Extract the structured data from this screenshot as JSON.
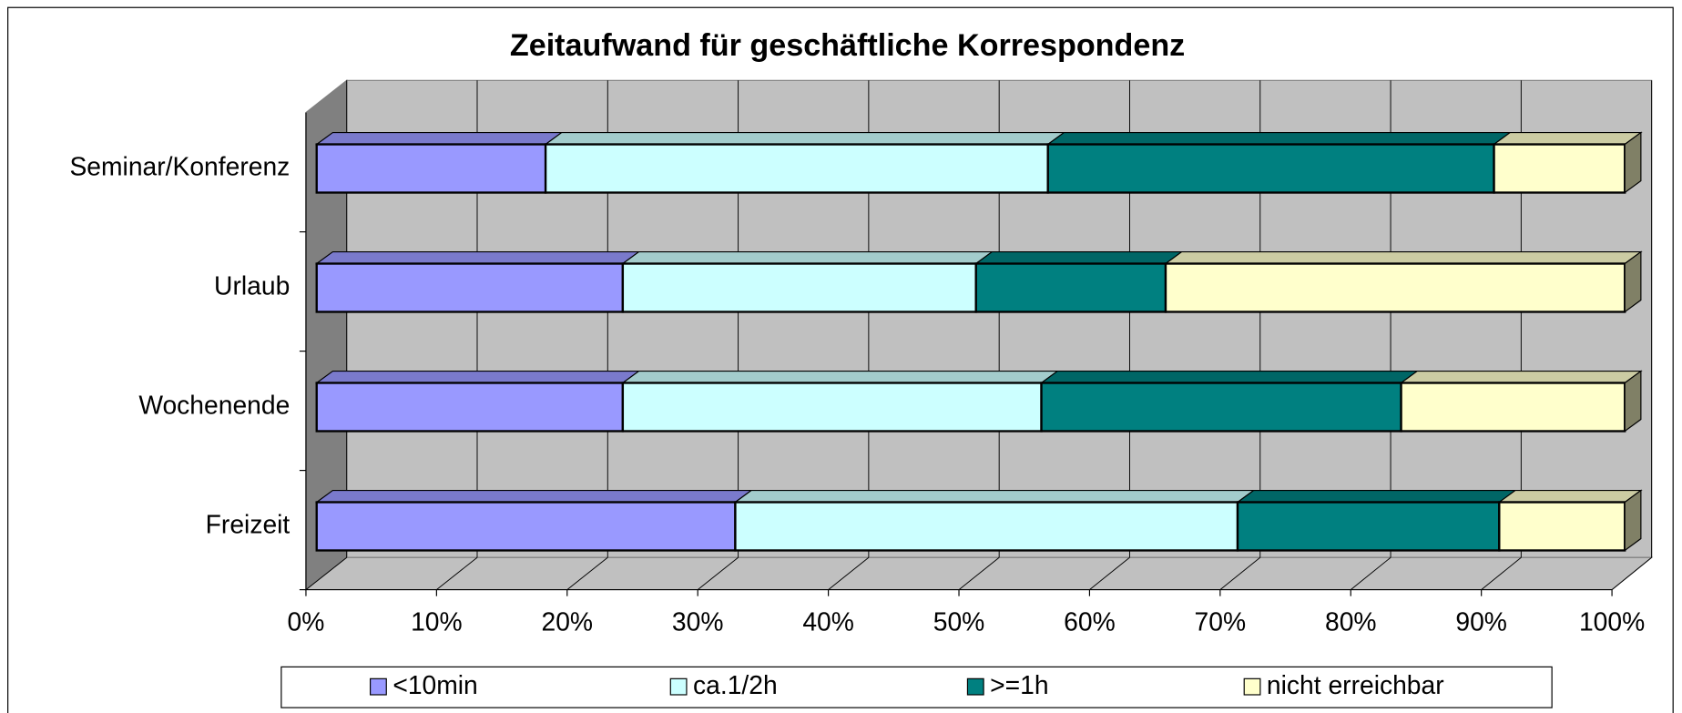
{
  "chart_data": {
    "type": "bar3d_stacked_horizontal",
    "title": "Zeitaufwand für geschäftliche Korrespondenz",
    "categories": [
      "Freizeit",
      "Wochenende",
      "Urlaub",
      "Seminar/Konferenz"
    ],
    "series": [
      {
        "name": "<10min",
        "color": "#9999ff",
        "values": [
          32.0,
          23.4,
          23.4,
          17.5
        ]
      },
      {
        "name": "ca.1/2h",
        "color": "#ccffff",
        "values": [
          38.4,
          32.0,
          27.0,
          38.4
        ]
      },
      {
        "name": ">=1h",
        "color": "#008080",
        "values": [
          20.0,
          27.5,
          14.5,
          34.1
        ]
      },
      {
        "name": "nicht erreichbar",
        "color": "#ffffcc",
        "values": [
          9.6,
          17.1,
          35.1,
          10.0
        ]
      }
    ],
    "xlim": [
      0,
      100
    ],
    "xticks": [
      {
        "value": 0,
        "label": "0%"
      },
      {
        "value": 10,
        "label": "10%"
      },
      {
        "value": 20,
        "label": "20%"
      },
      {
        "value": 30,
        "label": "30%"
      },
      {
        "value": 40,
        "label": "40%"
      },
      {
        "value": 50,
        "label": "50%"
      },
      {
        "value": 60,
        "label": "60%"
      },
      {
        "value": 70,
        "label": "70%"
      },
      {
        "value": 80,
        "label": "80%"
      },
      {
        "value": 90,
        "label": "90%"
      },
      {
        "value": 100,
        "label": "100%"
      }
    ],
    "grid": true,
    "legend": "bottom"
  }
}
